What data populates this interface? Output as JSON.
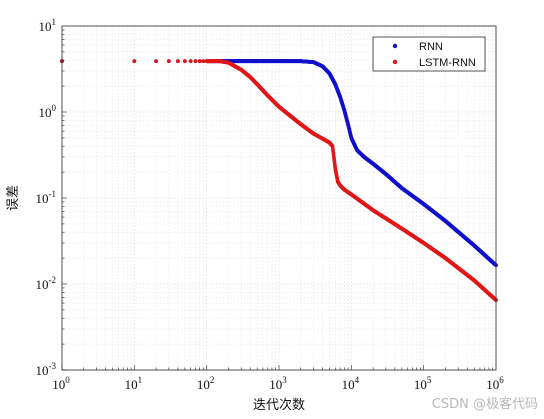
{
  "chart_data": {
    "type": "scatter",
    "xlabel": "迭代次数",
    "ylabel": "误差",
    "xscale": "log",
    "yscale": "log",
    "xlim": [
      1,
      1000000
    ],
    "ylim": [
      0.001,
      10
    ],
    "grid": true,
    "legend_position": "top-right",
    "x_ticks": [
      {
        "base": "10",
        "exp": "0",
        "value": 1
      },
      {
        "base": "10",
        "exp": "1",
        "value": 10
      },
      {
        "base": "10",
        "exp": "2",
        "value": 100
      },
      {
        "base": "10",
        "exp": "3",
        "value": 1000
      },
      {
        "base": "10",
        "exp": "4",
        "value": 10000
      },
      {
        "base": "10",
        "exp": "5",
        "value": 100000
      },
      {
        "base": "10",
        "exp": "6",
        "value": 1000000
      }
    ],
    "y_ticks": [
      {
        "base": "10",
        "exp": "-3",
        "value": 0.001
      },
      {
        "base": "10",
        "exp": "-2",
        "value": 0.01
      },
      {
        "base": "10",
        "exp": "-1",
        "value": 0.1
      },
      {
        "base": "10",
        "exp": "0",
        "value": 1
      },
      {
        "base": "10",
        "exp": "1",
        "value": 10
      }
    ],
    "series": [
      {
        "name": "RNN",
        "color": "#1010cc",
        "points": [
          [
            1,
            3.9
          ],
          [
            2,
            3.9
          ],
          [
            3,
            3.9
          ],
          [
            5,
            3.9
          ],
          [
            10,
            3.9
          ],
          [
            20,
            3.9
          ],
          [
            30,
            3.9
          ],
          [
            50,
            3.9
          ],
          [
            100,
            3.9
          ],
          [
            200,
            3.9
          ],
          [
            500,
            3.9
          ],
          [
            1000,
            3.9
          ],
          [
            2000,
            3.9
          ],
          [
            3000,
            3.8
          ],
          [
            4000,
            3.4
          ],
          [
            5000,
            2.8
          ],
          [
            6000,
            2.1
          ],
          [
            7000,
            1.5
          ],
          [
            8000,
            1.05
          ],
          [
            9000,
            0.72
          ],
          [
            10000,
            0.5
          ],
          [
            12000,
            0.36
          ],
          [
            15000,
            0.3
          ],
          [
            20000,
            0.25
          ],
          [
            30000,
            0.19
          ],
          [
            50000,
            0.13
          ],
          [
            100000,
            0.085
          ],
          [
            200000,
            0.054
          ],
          [
            500000,
            0.028
          ],
          [
            1000000,
            0.0165
          ]
        ]
      },
      {
        "name": "LSTM-RNN",
        "color": "#e01818",
        "points": [
          [
            1,
            3.9
          ],
          [
            2,
            3.9
          ],
          [
            3,
            3.9
          ],
          [
            5,
            3.9
          ],
          [
            10,
            3.9
          ],
          [
            20,
            3.9
          ],
          [
            30,
            3.9
          ],
          [
            50,
            3.9
          ],
          [
            100,
            3.9
          ],
          [
            150,
            3.9
          ],
          [
            200,
            3.75
          ],
          [
            300,
            3.1
          ],
          [
            400,
            2.55
          ],
          [
            500,
            2.1
          ],
          [
            700,
            1.55
          ],
          [
            1000,
            1.15
          ],
          [
            2000,
            0.72
          ],
          [
            3000,
            0.56
          ],
          [
            4000,
            0.49
          ],
          [
            5000,
            0.44
          ],
          [
            5500,
            0.4
          ],
          [
            6000,
            0.22
          ],
          [
            6500,
            0.155
          ],
          [
            7000,
            0.14
          ],
          [
            8000,
            0.125
          ],
          [
            10000,
            0.11
          ],
          [
            20000,
            0.072
          ],
          [
            50000,
            0.044
          ],
          [
            100000,
            0.03
          ],
          [
            200000,
            0.02
          ],
          [
            500000,
            0.011
          ],
          [
            1000000,
            0.0065
          ]
        ]
      }
    ]
  },
  "watermark": "CSDN @极客代码"
}
